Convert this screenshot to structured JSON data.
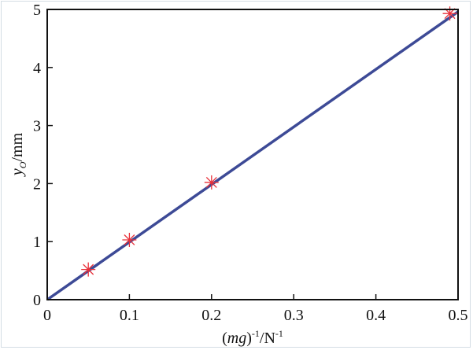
{
  "chart_data": {
    "type": "scatter",
    "xlabel": {
      "pre": "(",
      "italic": "mg",
      "post": ")",
      "sup1": "-1",
      "mid": "/N",
      "sup2": "-1"
    },
    "ylabel": {
      "italic": "y",
      "sub": "O",
      "post": "/mm"
    },
    "xlim": [
      0,
      0.5
    ],
    "ylim": [
      0,
      5
    ],
    "xticks": [
      "0",
      "0.1",
      "0.2",
      "0.3",
      "0.4",
      "0.5"
    ],
    "yticks": [
      "0",
      "1",
      "2",
      "3",
      "4",
      "5"
    ],
    "grid": false,
    "series": [
      {
        "kind": "points",
        "marker": "asterisk",
        "color": "#e8313a",
        "x": [
          0.05,
          0.1,
          0.2,
          0.49
        ],
        "y": [
          0.52,
          1.03,
          2.02,
          4.93
        ]
      },
      {
        "kind": "fit-line",
        "color": "#3d4a96",
        "x": [
          0,
          0.5
        ],
        "y": [
          0,
          4.96
        ]
      }
    ]
  }
}
